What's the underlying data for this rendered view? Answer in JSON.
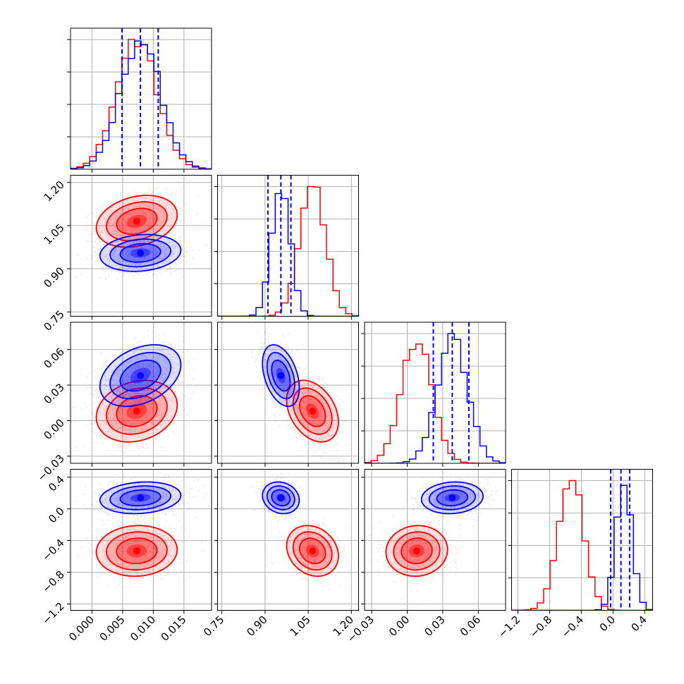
{
  "chart_data": {
    "type": "corner",
    "title": "",
    "grid": true,
    "colors": {
      "series_a": "#ff0000",
      "series_b": "#0000ff",
      "quantile_line": "#0000ff"
    },
    "parameters": [
      {
        "label": "",
        "range": [
          -0.0035,
          0.0195
        ],
        "ticks": [
          0.0,
          0.005,
          0.01,
          0.015
        ],
        "tick_labels": [
          "0.000",
          "0.005",
          "0.010",
          "0.015"
        ]
      },
      {
        "label": "",
        "range": [
          0.735,
          1.225
        ],
        "ticks": [
          0.75,
          0.9,
          1.05,
          1.2
        ],
        "tick_labels": [
          "0.75",
          "0.90",
          "1.05",
          "1.20"
        ]
      },
      {
        "label": "",
        "range": [
          -0.036,
          0.083
        ],
        "ticks": [
          -0.03,
          0.0,
          0.03,
          0.06
        ],
        "tick_labels": [
          "-0.03",
          "0.00",
          "0.03",
          "0.06"
        ]
      },
      {
        "label": "",
        "range": [
          -1.28,
          0.5
        ],
        "ticks": [
          -1.2,
          -0.8,
          -0.4,
          0.0,
          0.4
        ],
        "tick_labels": [
          "-1.2",
          "-0.8",
          "-0.4",
          "0.0",
          "0.4"
        ]
      }
    ],
    "series": [
      {
        "color": "#ff0000",
        "mean": [
          0.0073,
          1.065,
          0.008,
          -0.53
        ],
        "sd": [
          0.0033,
          0.045,
          0.013,
          0.16
        ]
      },
      {
        "color": "#0000ff",
        "mean": [
          0.0079,
          0.955,
          0.038,
          0.14
        ],
        "sd": [
          0.0033,
          0.032,
          0.013,
          0.1
        ]
      }
    ],
    "quantiles": [
      [
        0.0049,
        0.0079,
        0.0108
      ],
      [
        0.91,
        0.955,
        0.99
      ],
      [
        0.022,
        0.038,
        0.052
      ],
      [
        -0.03,
        0.1,
        0.21
      ]
    ],
    "correlations": [
      {
        "pair": [
          1,
          0
        ],
        "series_a": 0.25,
        "series_b": 0.15
      },
      {
        "pair": [
          2,
          0
        ],
        "series_a": 0.2,
        "series_b": 0.35
      },
      {
        "pair": [
          2,
          1
        ],
        "series_a": -0.35,
        "series_b": -0.4
      },
      {
        "pair": [
          3,
          0
        ],
        "series_a": 0.05,
        "series_b": 0.15
      },
      {
        "pair": [
          3,
          1
        ],
        "series_a": -0.2,
        "series_b": -0.15
      },
      {
        "pair": [
          3,
          2
        ],
        "series_a": 0.05,
        "series_b": 0.1
      }
    ],
    "contour_levels_sigma": [
      0.5,
      1.0,
      1.5,
      2.0
    ]
  }
}
